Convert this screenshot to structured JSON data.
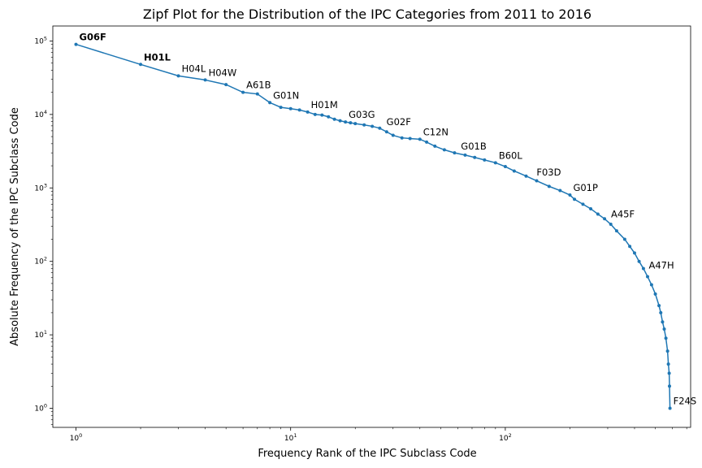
{
  "chart_data": {
    "type": "line",
    "title": "Zipf Plot for the Distribution of the IPC Categories from 2011 to 2016",
    "xlabel": "Frequency Rank of the IPC Subclass Code",
    "ylabel": "Absolute Frequency of the IPC Subclass Code",
    "x_scale": "log",
    "y_scale": "log",
    "xlim": [
      0.78,
      730
    ],
    "ylim": [
      0.55,
      160000
    ],
    "grid": false,
    "legend": "none",
    "line_color": "#1f77b4",
    "x_ticks": [
      {
        "value": 1,
        "base": "10",
        "exp": "0"
      },
      {
        "value": 10,
        "base": "10",
        "exp": "1"
      },
      {
        "value": 100,
        "base": "10",
        "exp": "2"
      }
    ],
    "y_ticks": [
      {
        "value": 1,
        "base": "10",
        "exp": "0"
      },
      {
        "value": 10,
        "base": "10",
        "exp": "1"
      },
      {
        "value": 100,
        "base": "10",
        "exp": "2"
      },
      {
        "value": 1000,
        "base": "10",
        "exp": "3"
      },
      {
        "value": 10000,
        "base": "10",
        "exp": "4"
      },
      {
        "value": 100000,
        "base": "10",
        "exp": "5"
      }
    ],
    "series": [
      {
        "points": [
          [
            1,
            90000
          ],
          [
            2,
            48000
          ],
          [
            3,
            33500
          ],
          [
            4,
            29500
          ],
          [
            5,
            25500
          ],
          [
            6,
            20000
          ],
          [
            7,
            19000
          ],
          [
            8,
            14500
          ],
          [
            9,
            12500
          ],
          [
            10,
            12000
          ],
          [
            11,
            11500
          ],
          [
            12,
            10800
          ],
          [
            13,
            10000
          ],
          [
            14,
            9800
          ],
          [
            15,
            9300
          ],
          [
            16,
            8600
          ],
          [
            17,
            8200
          ],
          [
            18,
            7900
          ],
          [
            19,
            7700
          ],
          [
            20,
            7500
          ],
          [
            22,
            7200
          ],
          [
            24,
            6900
          ],
          [
            26,
            6500
          ],
          [
            28,
            5800
          ],
          [
            30,
            5200
          ],
          [
            33,
            4800
          ],
          [
            36,
            4700
          ],
          [
            40,
            4600
          ],
          [
            43,
            4200
          ],
          [
            47,
            3700
          ],
          [
            52,
            3300
          ],
          [
            58,
            3000
          ],
          [
            65,
            2800
          ],
          [
            72,
            2600
          ],
          [
            80,
            2400
          ],
          [
            90,
            2200
          ],
          [
            100,
            1950
          ],
          [
            110,
            1700
          ],
          [
            125,
            1450
          ],
          [
            140,
            1250
          ],
          [
            160,
            1050
          ],
          [
            180,
            920
          ],
          [
            200,
            800
          ],
          [
            210,
            700
          ],
          [
            230,
            600
          ],
          [
            250,
            520
          ],
          [
            270,
            440
          ],
          [
            290,
            380
          ],
          [
            310,
            320
          ],
          [
            330,
            260
          ],
          [
            360,
            200
          ],
          [
            380,
            160
          ],
          [
            400,
            130
          ],
          [
            420,
            100
          ],
          [
            440,
            80
          ],
          [
            460,
            62
          ],
          [
            480,
            48
          ],
          [
            500,
            36
          ],
          [
            520,
            25
          ],
          [
            530,
            20
          ],
          [
            540,
            15
          ],
          [
            550,
            12
          ],
          [
            560,
            9
          ],
          [
            570,
            6
          ],
          [
            575,
            4
          ],
          [
            580,
            3
          ],
          [
            582,
            2
          ],
          [
            585,
            1
          ]
        ]
      }
    ],
    "annotations": [
      {
        "label": "G06F",
        "x": 1,
        "y": 90000,
        "bold": true
      },
      {
        "label": "H01L",
        "x": 2,
        "y": 48000,
        "bold": true
      },
      {
        "label": "H04L",
        "x": 3,
        "y": 33500,
        "bold": false
      },
      {
        "label": "H04W",
        "x": 4,
        "y": 29500,
        "bold": false
      },
      {
        "label": "A61B",
        "x": 6,
        "y": 20000,
        "bold": false
      },
      {
        "label": "G01N",
        "x": 8,
        "y": 14500,
        "bold": false
      },
      {
        "label": "H01M",
        "x": 12,
        "y": 10800,
        "bold": false
      },
      {
        "label": "G03G",
        "x": 18,
        "y": 7900,
        "bold": false
      },
      {
        "label": "G02F",
        "x": 27,
        "y": 6300,
        "bold": false
      },
      {
        "label": "C12N",
        "x": 40,
        "y": 4600,
        "bold": false
      },
      {
        "label": "G01B",
        "x": 60,
        "y": 2950,
        "bold": false
      },
      {
        "label": "B60L",
        "x": 90,
        "y": 2200,
        "bold": false
      },
      {
        "label": "F03D",
        "x": 135,
        "y": 1300,
        "bold": false
      },
      {
        "label": "G01P",
        "x": 200,
        "y": 800,
        "bold": false
      },
      {
        "label": "A45F",
        "x": 300,
        "y": 350,
        "bold": false
      },
      {
        "label": "A47H",
        "x": 450,
        "y": 70,
        "bold": false
      },
      {
        "label": "F24S",
        "x": 585,
        "y": 1,
        "bold": false
      }
    ]
  }
}
